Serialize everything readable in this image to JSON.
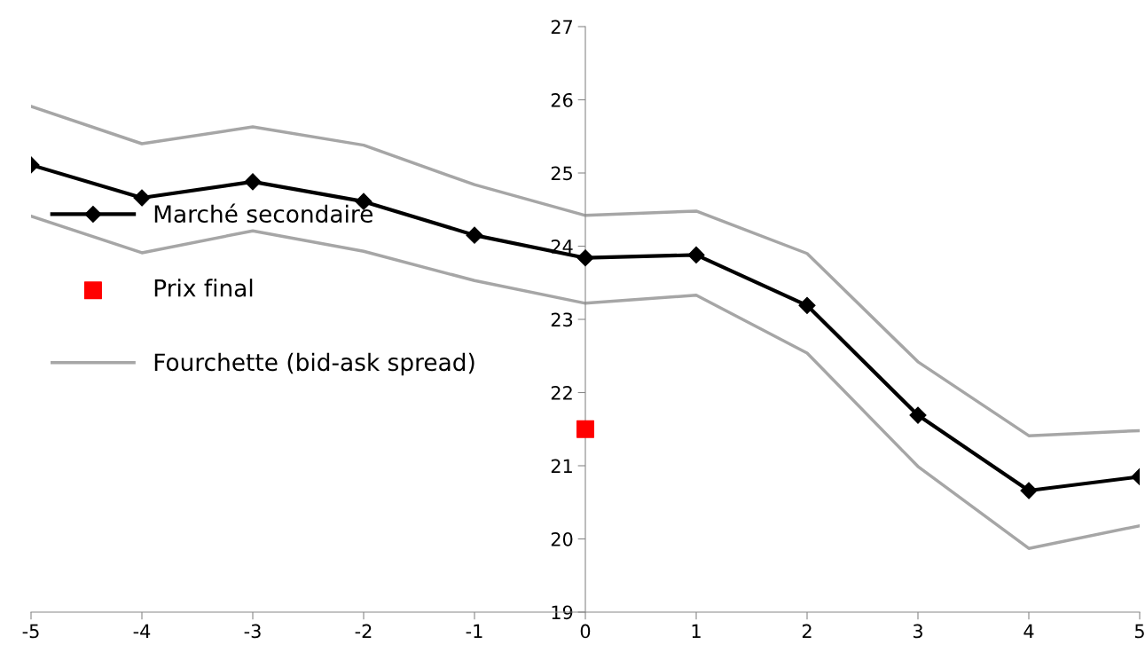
{
  "chart_data": {
    "type": "line",
    "x": [
      -5,
      -4,
      -3,
      -2,
      -1,
      0,
      1,
      2,
      3,
      4,
      5
    ],
    "xlim": [
      -5,
      5
    ],
    "xticks": [
      -5,
      -4,
      -3,
      -2,
      -1,
      0,
      1,
      2,
      3,
      4,
      5
    ],
    "ylim": [
      19,
      27
    ],
    "yticks": [
      19,
      20,
      21,
      22,
      23,
      24,
      25,
      26,
      27
    ],
    "grid": false,
    "legend": "left",
    "series": [
      {
        "name": "Marché secondaire",
        "color": "#000000",
        "marker": "diamond",
        "values": [
          25.11,
          24.66,
          24.88,
          24.61,
          24.15,
          23.84,
          23.88,
          23.19,
          21.69,
          20.66,
          20.85
        ]
      },
      {
        "type": "scatter",
        "name": "Prix final",
        "color": "#ff0000",
        "marker": "square",
        "x": [
          0
        ],
        "values": [
          21.5
        ]
      },
      {
        "name": "Fourchette (bid-ask spread)",
        "color": "#a6a6a6",
        "marker": "none",
        "values": [
          25.91,
          25.4,
          25.63,
          25.38,
          24.84,
          24.42,
          24.48,
          23.9,
          22.42,
          21.41,
          21.48
        ]
      },
      {
        "color": "#a6a6a6",
        "marker": "none",
        "values": [
          24.41,
          23.91,
          24.21,
          23.93,
          23.53,
          23.22,
          23.33,
          22.54,
          20.99,
          19.87,
          20.18
        ]
      }
    ]
  }
}
